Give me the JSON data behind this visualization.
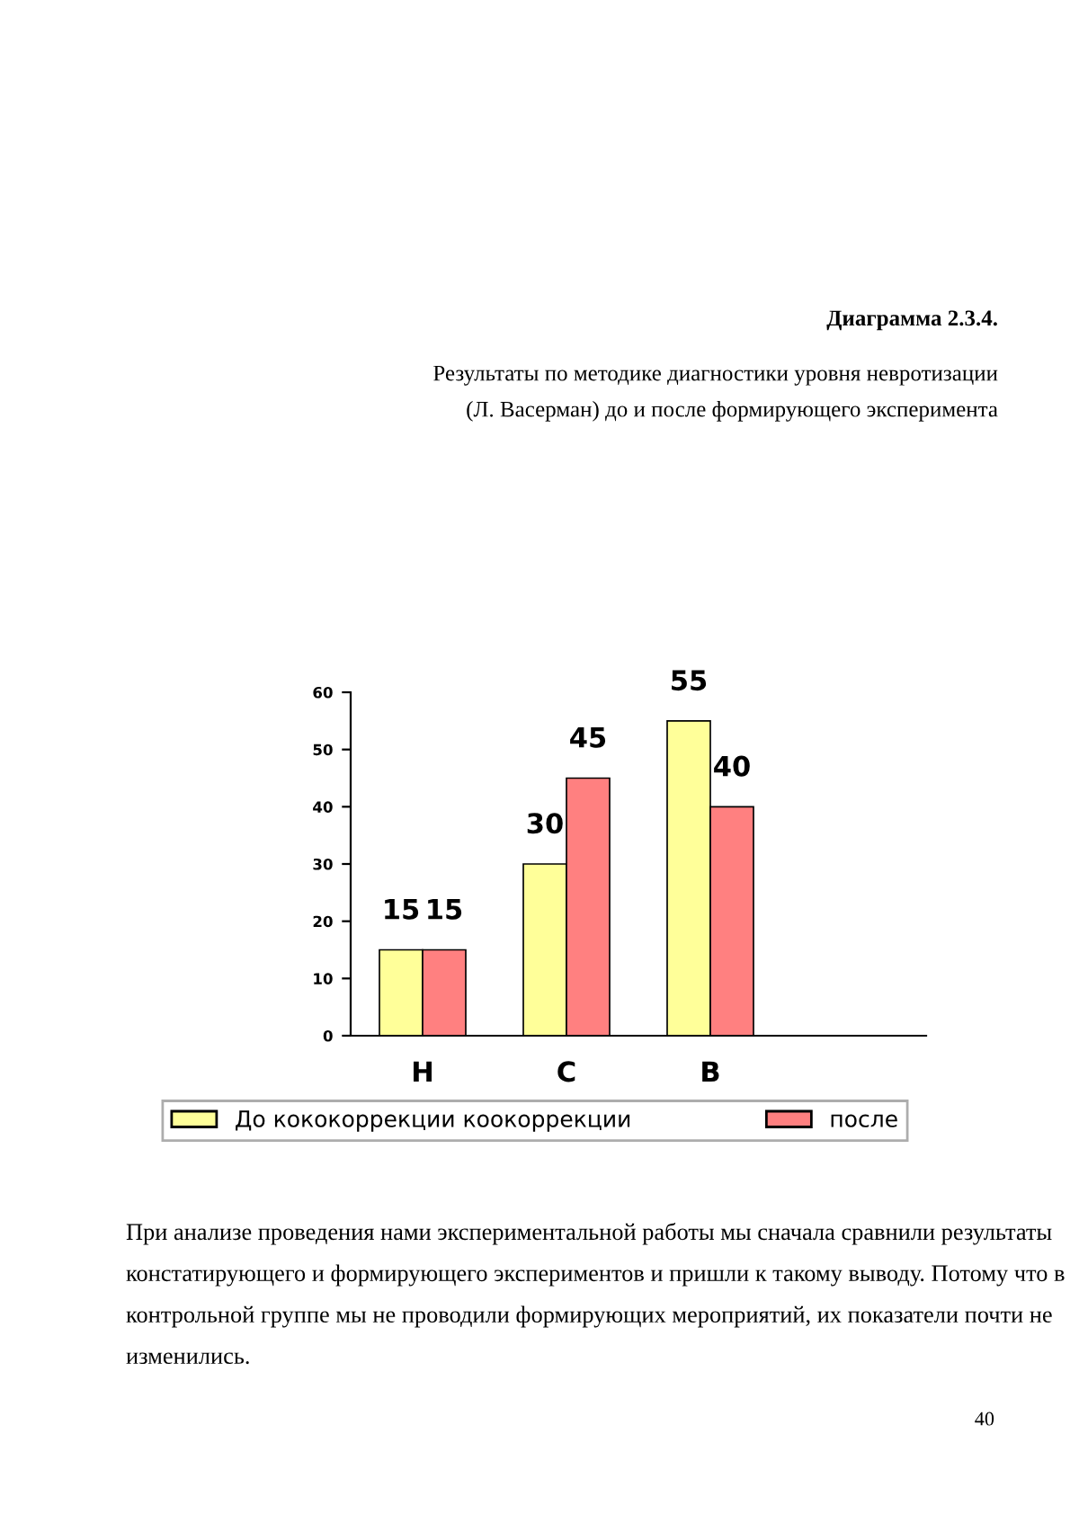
{
  "chart_data": {
    "type": "bar",
    "title": "Диаграмма 2.3.4.",
    "subtitle": "Результаты по методике диагностики уровня невротизации\n(Л. Васерман) до и после формирующего эксперимента",
    "categories": [
      "Н",
      "С",
      "В",
      null
    ],
    "series": [
      {
        "name": "До кококоррекции коокоррекции",
        "color": "#ffff99",
        "values": [
          15,
          30,
          55,
          null
        ]
      },
      {
        "name": "после",
        "color": "#ff8080",
        "values": [
          15,
          45,
          40,
          null
        ]
      }
    ],
    "ylim": [
      0,
      60
    ],
    "yticks": [
      0,
      10,
      20,
      30,
      40,
      50,
      60
    ],
    "grid": false,
    "legend": "bottom",
    "data_labels": true,
    "annotations": [
      "При анализе проведения нами экспериментальной работы мы сначала сравнили результаты констатирующего и формирующего экспериментов и пришли к такому выводу. Потому что в контрольной группе мы не проводили формирующих мероприятий, их показатели почти не изменились.",
      "40"
    ]
  }
}
